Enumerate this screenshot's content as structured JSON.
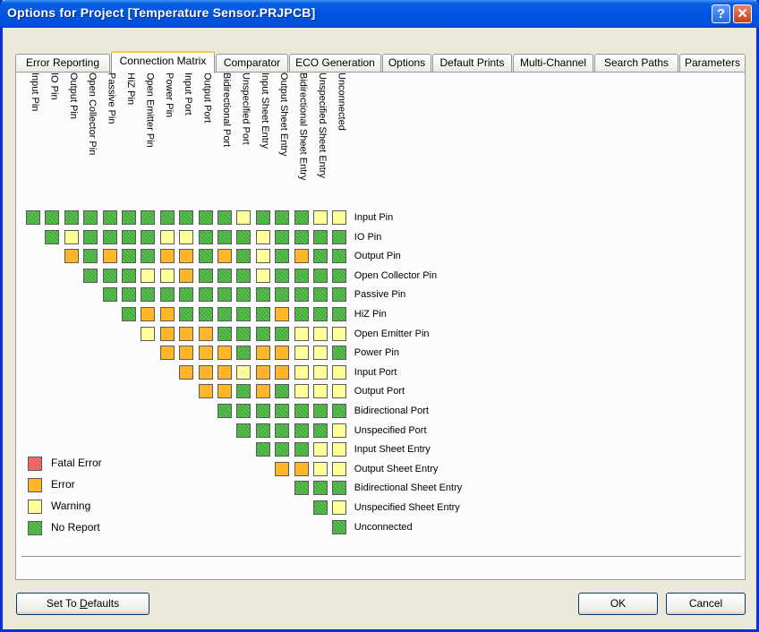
{
  "window": {
    "title": "Options for Project [Temperature Sensor.PRJPCB]"
  },
  "tabs": [
    "Error Reporting",
    "Connection Matrix",
    "Comparator",
    "ECO Generation",
    "Options",
    "Default Prints",
    "Multi-Channel",
    "Search Paths",
    "Parameters"
  ],
  "active_tab": "Connection Matrix",
  "matrix": {
    "labels": [
      "Input Pin",
      "IO Pin",
      "Output Pin",
      "Open Collector Pin",
      "Passive Pin",
      "HiZ Pin",
      "Open Emitter Pin",
      "Power Pin",
      "Input Port",
      "Output Port",
      "Bidirectional Port",
      "Unspecified Port",
      "Input Sheet Entry",
      "Output Sheet Entry",
      "Bidirectional Sheet Entry",
      "Unspecified Sheet Entry",
      "Unconnected"
    ],
    "rows": [
      "GGGGGGGGGGGYGGGYY",
      "GYGGGGYYGGGYGGGG",
      "OGOGGOOGOGYGOGG",
      "GGGYYOGGGYGGGG",
      "GGGGGGGGGGGGG",
      "GOOGGGGGOGGG",
      "YOOOGGGGYYY",
      "OOOOGOOYYG",
      "OOOYOOYYY",
      "OOGOGYYY",
      "GGGGGGG",
      "GGGGGY",
      "GGGYY",
      "OOYY",
      "GGG",
      "GY",
      "G"
    ]
  },
  "legend": [
    {
      "label": "Fatal Error",
      "code": "F"
    },
    {
      "label": "Error",
      "code": "O"
    },
    {
      "label": "Warning",
      "code": "Y"
    },
    {
      "label": "No Report",
      "code": "G"
    }
  ],
  "colors": {
    "F": "#ff6e6e",
    "O": "#ffb52a",
    "Y": "#ffff99",
    "G": "#56c24c"
  },
  "buttons": {
    "defaults": "Set To Defaults",
    "defaults_mnemonic": "D",
    "ok": "OK",
    "cancel": "Cancel"
  }
}
